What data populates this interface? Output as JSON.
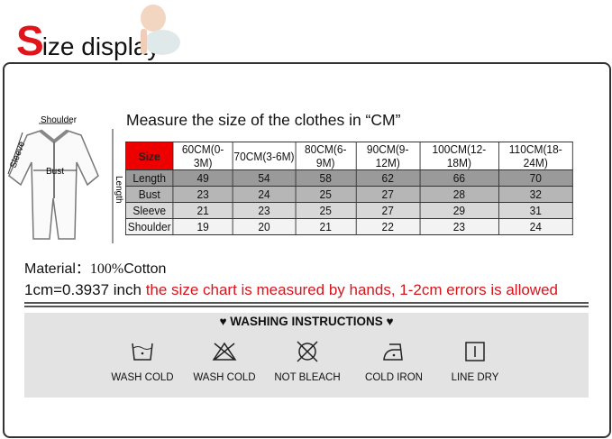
{
  "header": {
    "title_first": "S",
    "title_rest": "ize display"
  },
  "measure_title": "Measure the size of the clothes in “CM”",
  "diagram": {
    "shoulder": "Shoulder",
    "sleeve": "Sleeve",
    "bust": "Bust",
    "length": "Length"
  },
  "table": {
    "headers": [
      "Size",
      "60CM(0-3M)",
      "70CM(3-6M)",
      "80CM(6-9M)",
      "90CM(9-12M)",
      "100CM(12-18M)",
      "110CM(18-24M)"
    ],
    "rows": [
      [
        "Length",
        "49",
        "54",
        "58",
        "62",
        "66",
        "70"
      ],
      [
        "Bust",
        "23",
        "24",
        "25",
        "27",
        "28",
        "32"
      ],
      [
        "Sleeve",
        "21",
        "23",
        "25",
        "27",
        "29",
        "31"
      ],
      [
        "Shoulder",
        "19",
        "20",
        "21",
        "22",
        "23",
        "24"
      ]
    ]
  },
  "material": {
    "label": "Material：",
    "value": "100%",
    "rest": "Cotton"
  },
  "conversion": {
    "black": "1cm=0.3937 inch",
    "red": "the size chart is measured by hands, 1-2cm errors is allowed"
  },
  "washing": {
    "title": "♥  WASHING INSTRUCTIONS  ♥",
    "items": [
      {
        "icon": "wash-cold-icon",
        "label": "WASH COLD"
      },
      {
        "icon": "no-tumble-icon",
        "label": "WASH COLD"
      },
      {
        "icon": "not-bleach-icon",
        "label": "NOT BLEACH"
      },
      {
        "icon": "cold-iron-icon",
        "label": "COLD IRON"
      },
      {
        "icon": "line-dry-icon",
        "label": "LINE DRY"
      }
    ]
  },
  "colors": {
    "accent": "#e0141b"
  }
}
